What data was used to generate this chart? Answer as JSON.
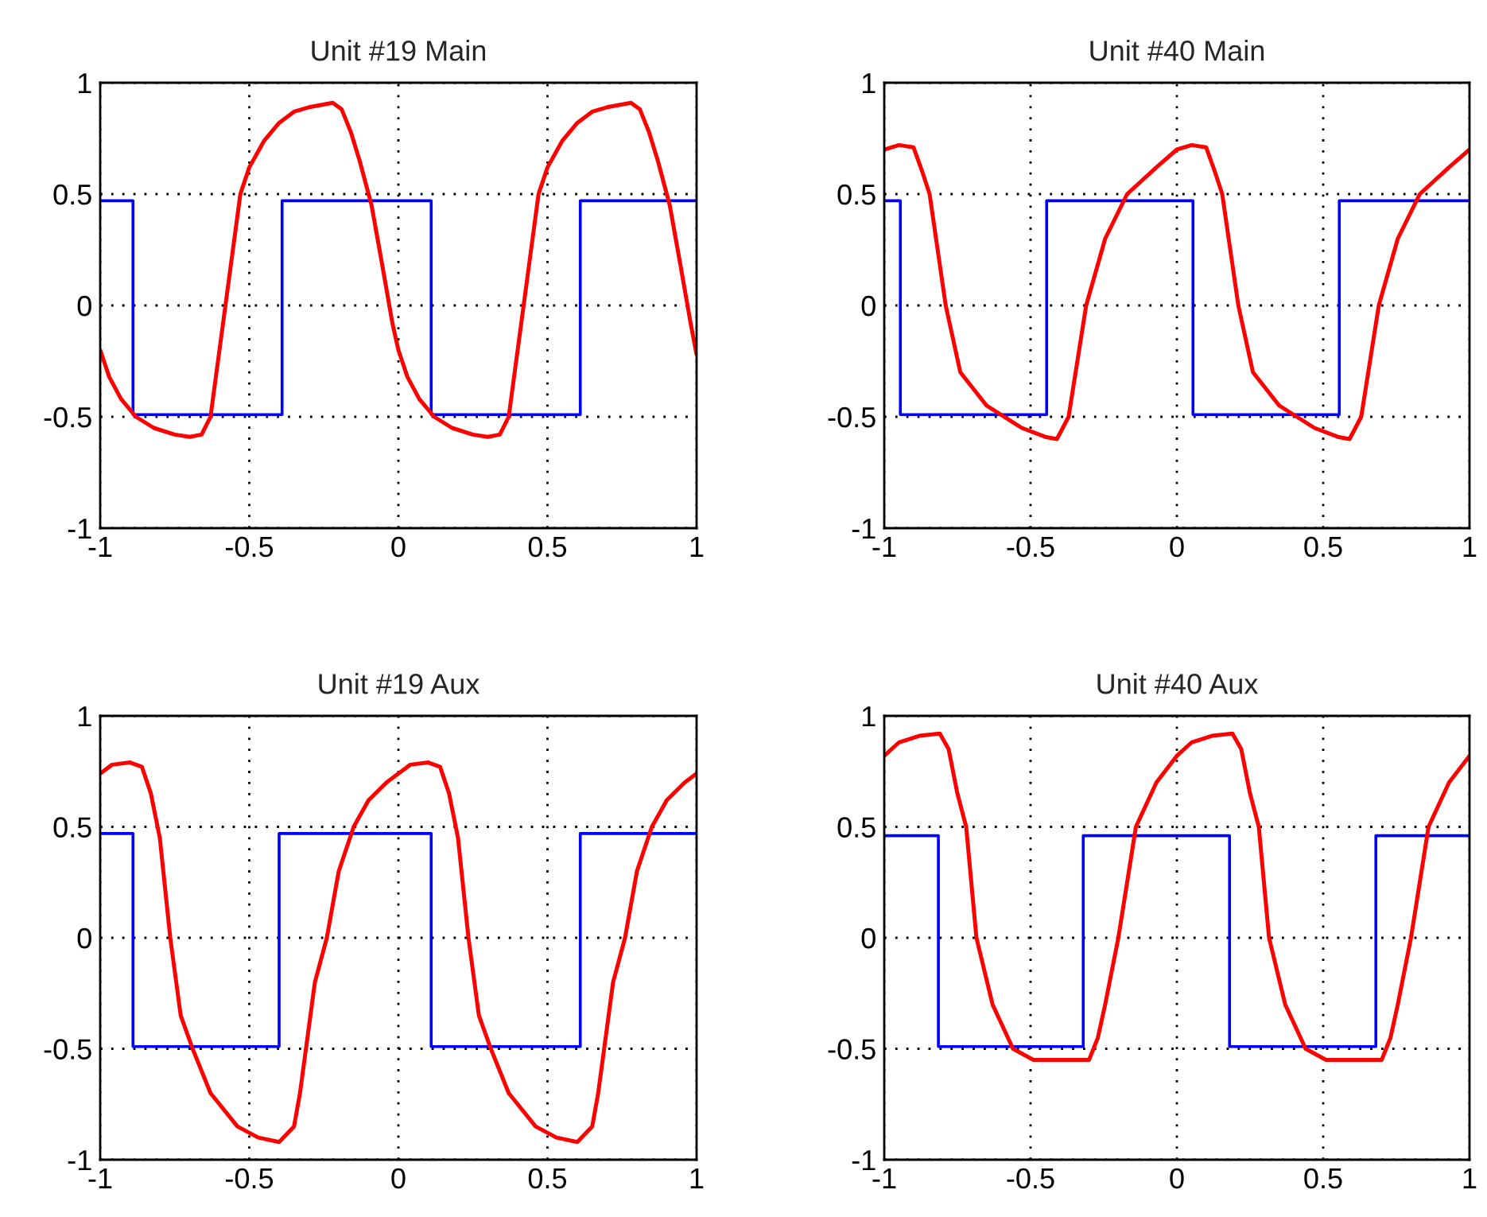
{
  "chart_data": [
    {
      "type": "line",
      "title": "Unit #19 Main",
      "xlim": [
        -1,
        1
      ],
      "ylim": [
        -1,
        1
      ],
      "xticks": [
        -1,
        -0.5,
        0,
        0.5,
        1
      ],
      "yticks": [
        -1,
        -0.5,
        0,
        0.5,
        1
      ],
      "grid": true,
      "series": [
        {
          "color": "#0000ff",
          "x": [
            -1,
            -0.89,
            -0.89,
            -0.39,
            -0.39,
            0.11,
            0.11,
            0.61,
            0.61,
            1
          ],
          "values": [
            0.47,
            0.47,
            -0.49,
            -0.49,
            0.47,
            0.47,
            -0.49,
            -0.49,
            0.47,
            0.47
          ]
        },
        {
          "color": "#ff0000",
          "x": [
            -1,
            -0.97,
            -0.93,
            -0.88,
            -0.82,
            -0.75,
            -0.7,
            -0.66,
            -0.63,
            -0.6,
            -0.58,
            -0.55,
            -0.53,
            -0.5,
            -0.45,
            -0.4,
            -0.35,
            -0.3,
            -0.22,
            -0.19,
            -0.16,
            -0.13,
            -0.09,
            -0.05,
            -0.02,
            0,
            0.03,
            0.07,
            0.12,
            0.18,
            0.25,
            0.3,
            0.34,
            0.37,
            0.4,
            0.42,
            0.45,
            0.47,
            0.5,
            0.55,
            0.6,
            0.65,
            0.7,
            0.78,
            0.81,
            0.84,
            0.87,
            0.91,
            0.95,
            0.98,
            1
          ],
          "values": [
            -0.2,
            -0.32,
            -0.42,
            -0.5,
            -0.55,
            -0.58,
            -0.59,
            -0.58,
            -0.5,
            -0.2,
            0.0,
            0.3,
            0.5,
            0.62,
            0.74,
            0.82,
            0.87,
            0.89,
            0.91,
            0.88,
            0.78,
            0.65,
            0.45,
            0.15,
            -0.08,
            -0.2,
            -0.32,
            -0.42,
            -0.5,
            -0.55,
            -0.58,
            -0.59,
            -0.58,
            -0.5,
            -0.2,
            0.0,
            0.3,
            0.5,
            0.62,
            0.74,
            0.82,
            0.87,
            0.89,
            0.91,
            0.88,
            0.78,
            0.65,
            0.45,
            0.15,
            -0.08,
            -0.22
          ]
        }
      ]
    },
    {
      "type": "line",
      "title": "Unit #40 Main",
      "xlim": [
        -1,
        1
      ],
      "ylim": [
        -1,
        1
      ],
      "xticks": [
        -1,
        -0.5,
        0,
        0.5,
        1
      ],
      "yticks": [
        -1,
        -0.5,
        0,
        0.5,
        1
      ],
      "grid": true,
      "series": [
        {
          "color": "#0000ff",
          "x": [
            -1,
            -0.945,
            -0.945,
            -0.445,
            -0.445,
            0.055,
            0.055,
            0.555,
            0.555,
            1
          ],
          "values": [
            0.47,
            0.47,
            -0.49,
            -0.49,
            0.47,
            0.47,
            -0.49,
            -0.49,
            0.47,
            0.47
          ]
        },
        {
          "color": "#ff0000",
          "x": [
            -1,
            -0.95,
            -0.9,
            -0.87,
            -0.845,
            -0.79,
            -0.74,
            -0.65,
            -0.53,
            -0.45,
            -0.41,
            -0.37,
            -0.31,
            -0.245,
            -0.17,
            -0.07,
            0,
            0.05,
            0.1,
            0.13,
            0.155,
            0.21,
            0.26,
            0.35,
            0.47,
            0.55,
            0.59,
            0.63,
            0.69,
            0.755,
            0.83,
            0.93,
            1
          ],
          "values": [
            0.7,
            0.72,
            0.71,
            0.6,
            0.5,
            0.0,
            -0.3,
            -0.45,
            -0.55,
            -0.59,
            -0.6,
            -0.5,
            0.0,
            0.3,
            0.5,
            0.62,
            0.7,
            0.72,
            0.71,
            0.6,
            0.5,
            0.0,
            -0.3,
            -0.45,
            -0.55,
            -0.59,
            -0.6,
            -0.5,
            0.0,
            0.3,
            0.5,
            0.62,
            0.7
          ]
        }
      ]
    },
    {
      "type": "line",
      "title": "Unit #19 Aux",
      "xlim": [
        -1,
        1
      ],
      "ylim": [
        -1,
        1
      ],
      "xticks": [
        -1,
        -0.5,
        0,
        0.5,
        1
      ],
      "yticks": [
        -1,
        -0.5,
        0,
        0.5,
        1
      ],
      "grid": true,
      "series": [
        {
          "color": "#0000ff",
          "x": [
            -1,
            -0.89,
            -0.89,
            -0.4,
            -0.4,
            0.11,
            0.11,
            0.61,
            0.61,
            1
          ],
          "values": [
            0.47,
            0.47,
            -0.49,
            -0.49,
            0.47,
            0.47,
            -0.49,
            -0.49,
            0.47,
            0.47
          ]
        },
        {
          "color": "#ff0000",
          "x": [
            -1,
            -0.96,
            -0.9,
            -0.86,
            -0.83,
            -0.8,
            -0.765,
            -0.73,
            -0.69,
            -0.63,
            -0.54,
            -0.47,
            -0.4,
            -0.35,
            -0.33,
            -0.31,
            -0.28,
            -0.24,
            -0.2,
            -0.15,
            -0.1,
            -0.04,
            0,
            0.04,
            0.1,
            0.14,
            0.17,
            0.2,
            0.235,
            0.27,
            0.31,
            0.37,
            0.46,
            0.53,
            0.6,
            0.65,
            0.67,
            0.69,
            0.72,
            0.76,
            0.8,
            0.85,
            0.9,
            0.96,
            1
          ],
          "values": [
            0.74,
            0.78,
            0.79,
            0.77,
            0.65,
            0.45,
            0.0,
            -0.35,
            -0.5,
            -0.7,
            -0.85,
            -0.9,
            -0.92,
            -0.85,
            -0.7,
            -0.5,
            -0.2,
            0.0,
            0.3,
            0.5,
            0.62,
            0.7,
            0.74,
            0.78,
            0.79,
            0.77,
            0.65,
            0.45,
            0.0,
            -0.35,
            -0.5,
            -0.7,
            -0.85,
            -0.9,
            -0.92,
            -0.85,
            -0.7,
            -0.5,
            -0.2,
            0.0,
            0.3,
            0.5,
            0.62,
            0.7,
            0.74
          ]
        }
      ]
    },
    {
      "type": "line",
      "title": "Unit #40 Aux",
      "xlim": [
        -1,
        1
      ],
      "ylim": [
        -1,
        1
      ],
      "xticks": [
        -1,
        -0.5,
        0,
        0.5,
        1
      ],
      "yticks": [
        -1,
        -0.5,
        0,
        0.5,
        1
      ],
      "grid": true,
      "series": [
        {
          "color": "#0000ff",
          "x": [
            -1,
            -0.815,
            -0.815,
            -0.32,
            -0.32,
            0.18,
            0.18,
            0.68,
            0.68,
            1
          ],
          "values": [
            0.46,
            0.46,
            -0.49,
            -0.49,
            0.46,
            0.46,
            -0.49,
            -0.49,
            0.46,
            0.46
          ]
        },
        {
          "color": "#ff0000",
          "x": [
            -1,
            -0.95,
            -0.88,
            -0.81,
            -0.78,
            -0.75,
            -0.72,
            -0.685,
            -0.63,
            -0.56,
            -0.49,
            -0.4,
            -0.3,
            -0.27,
            -0.245,
            -0.2,
            -0.14,
            -0.07,
            0,
            0.05,
            0.12,
            0.19,
            0.22,
            0.25,
            0.28,
            0.315,
            0.37,
            0.44,
            0.51,
            0.6,
            0.7,
            0.73,
            0.755,
            0.8,
            0.86,
            0.93,
            1
          ],
          "values": [
            0.82,
            0.88,
            0.91,
            0.92,
            0.85,
            0.65,
            0.5,
            0.0,
            -0.3,
            -0.5,
            -0.55,
            -0.55,
            -0.55,
            -0.45,
            -0.3,
            0.0,
            0.5,
            0.7,
            0.82,
            0.88,
            0.91,
            0.92,
            0.85,
            0.65,
            0.5,
            0.0,
            -0.3,
            -0.5,
            -0.55,
            -0.55,
            -0.55,
            -0.45,
            -0.3,
            0.0,
            0.5,
            0.7,
            0.82
          ]
        }
      ]
    }
  ]
}
